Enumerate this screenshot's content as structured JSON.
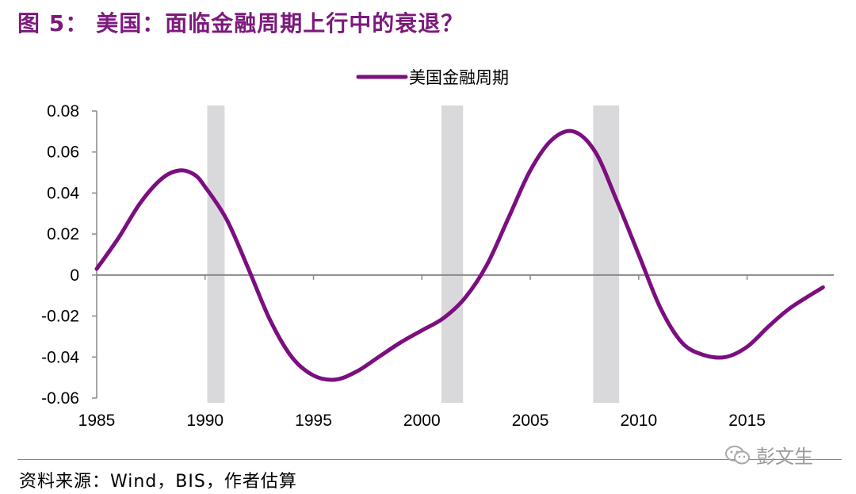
{
  "figure": {
    "label": "图 5：",
    "title": "美国：面临金融周期上行中的衰退？",
    "source": "资料来源：Wind，BIS，作者估算",
    "watermark": "彭文生"
  },
  "colors": {
    "title": "#7b1a7b",
    "series": "#7b0f7f",
    "recession_band": "#d9d9db",
    "axis": "#888888"
  },
  "chart_data": {
    "type": "line",
    "title": "",
    "xlabel": "",
    "ylabel": "",
    "xlim": [
      1985,
      2019
    ],
    "ylim": [
      -0.06,
      0.08
    ],
    "x_ticks": [
      1985,
      1990,
      1995,
      2000,
      2005,
      2010,
      2015
    ],
    "x_tick_labels": [
      "1985",
      "1990",
      "1995",
      "2000",
      "2005",
      "2010",
      "2015"
    ],
    "y_ticks": [
      0.08,
      0.06,
      0.04,
      0.02,
      0,
      -0.02,
      -0.04,
      -0.06
    ],
    "y_tick_labels": [
      "0.08",
      "0.06",
      "0.04",
      "0.02",
      "0",
      "-0.02",
      "-0.04",
      "-0.06"
    ],
    "legend": {
      "position": "top-center",
      "entries": [
        "美国金融周期"
      ]
    },
    "recession_bands": [
      {
        "start": 1990.1,
        "end": 1990.9
      },
      {
        "start": 2000.9,
        "end": 2001.9
      },
      {
        "start": 2007.9,
        "end": 2009.1
      }
    ],
    "series": [
      {
        "name": "美国金融周期",
        "color": "#7b0f7f",
        "x": [
          1985,
          1986,
          1987,
          1988,
          1988.8,
          1989.5,
          1990,
          1991,
          1992,
          1993,
          1994,
          1995,
          1996,
          1997,
          1998,
          1999,
          2000,
          2001,
          2002,
          2003,
          2004,
          2005,
          2006,
          2007,
          2008,
          2009,
          2010,
          2011,
          2012,
          2013,
          2014,
          2015,
          2016,
          2017,
          2018.5
        ],
        "y": [
          0.003,
          0.018,
          0.035,
          0.047,
          0.051,
          0.049,
          0.043,
          0.027,
          0.003,
          -0.022,
          -0.04,
          -0.049,
          -0.051,
          -0.047,
          -0.04,
          -0.033,
          -0.027,
          -0.021,
          -0.011,
          0.005,
          0.028,
          0.051,
          0.066,
          0.07,
          0.06,
          0.036,
          0.01,
          -0.016,
          -0.033,
          -0.039,
          -0.04,
          -0.035,
          -0.025,
          -0.016,
          -0.006
        ]
      }
    ]
  }
}
